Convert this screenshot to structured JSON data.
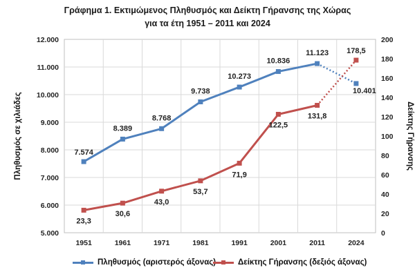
{
  "chart_data": {
    "type": "line",
    "title": "Γράφημα 1. Εκτιμώμενος Πληθυσμός και Δείκτη Γήρανσης της Χώρας",
    "subtitle": "για τα έτη 1951 – 2011 και 2024",
    "categories": [
      "1951",
      "1961",
      "1971",
      "1981",
      "1991",
      "2001",
      "2011",
      "2024"
    ],
    "ylabel_left": "Πληθυσμός σε χιλιάδες",
    "ylabel_right": "Δείκτης Γήρανσης",
    "ylim_left": [
      5000,
      12000
    ],
    "ylim_right": [
      0,
      200
    ],
    "yticks_left": [
      "5.000",
      "6.000",
      "7.000",
      "8.000",
      "9.000",
      "10.000",
      "11.000",
      "12.000"
    ],
    "yticks_right": [
      "0",
      "20",
      "40",
      "60",
      "80",
      "100",
      "120",
      "140",
      "160",
      "180",
      "200"
    ],
    "grid": true,
    "legend_position": "bottom",
    "series": [
      {
        "name": "Πληθυσμός (αριστερός άξονας)",
        "axis": "left",
        "color": "#4f81bd",
        "marker": "square",
        "values": [
          7574,
          8389,
          8768,
          9738,
          10273,
          10836,
          11123,
          10401
        ],
        "labels": [
          "7.574",
          "8.389",
          "8.768",
          "9.738",
          "10.273",
          "10.836",
          "11.123",
          "10.401"
        ],
        "dotted_last_segment": true
      },
      {
        "name": "Δείκτης Γήρανσης (δεξιός άξονας)",
        "axis": "right",
        "color": "#c0504d",
        "marker": "square",
        "values": [
          23.3,
          30.6,
          43.0,
          53.7,
          71.9,
          122.5,
          131.8,
          178.5
        ],
        "labels": [
          "23,3",
          "30,6",
          "43,0",
          "53,7",
          "71,9",
          "122,5",
          "131,8",
          "178,5"
        ],
        "dotted_last_segment": true
      }
    ]
  }
}
